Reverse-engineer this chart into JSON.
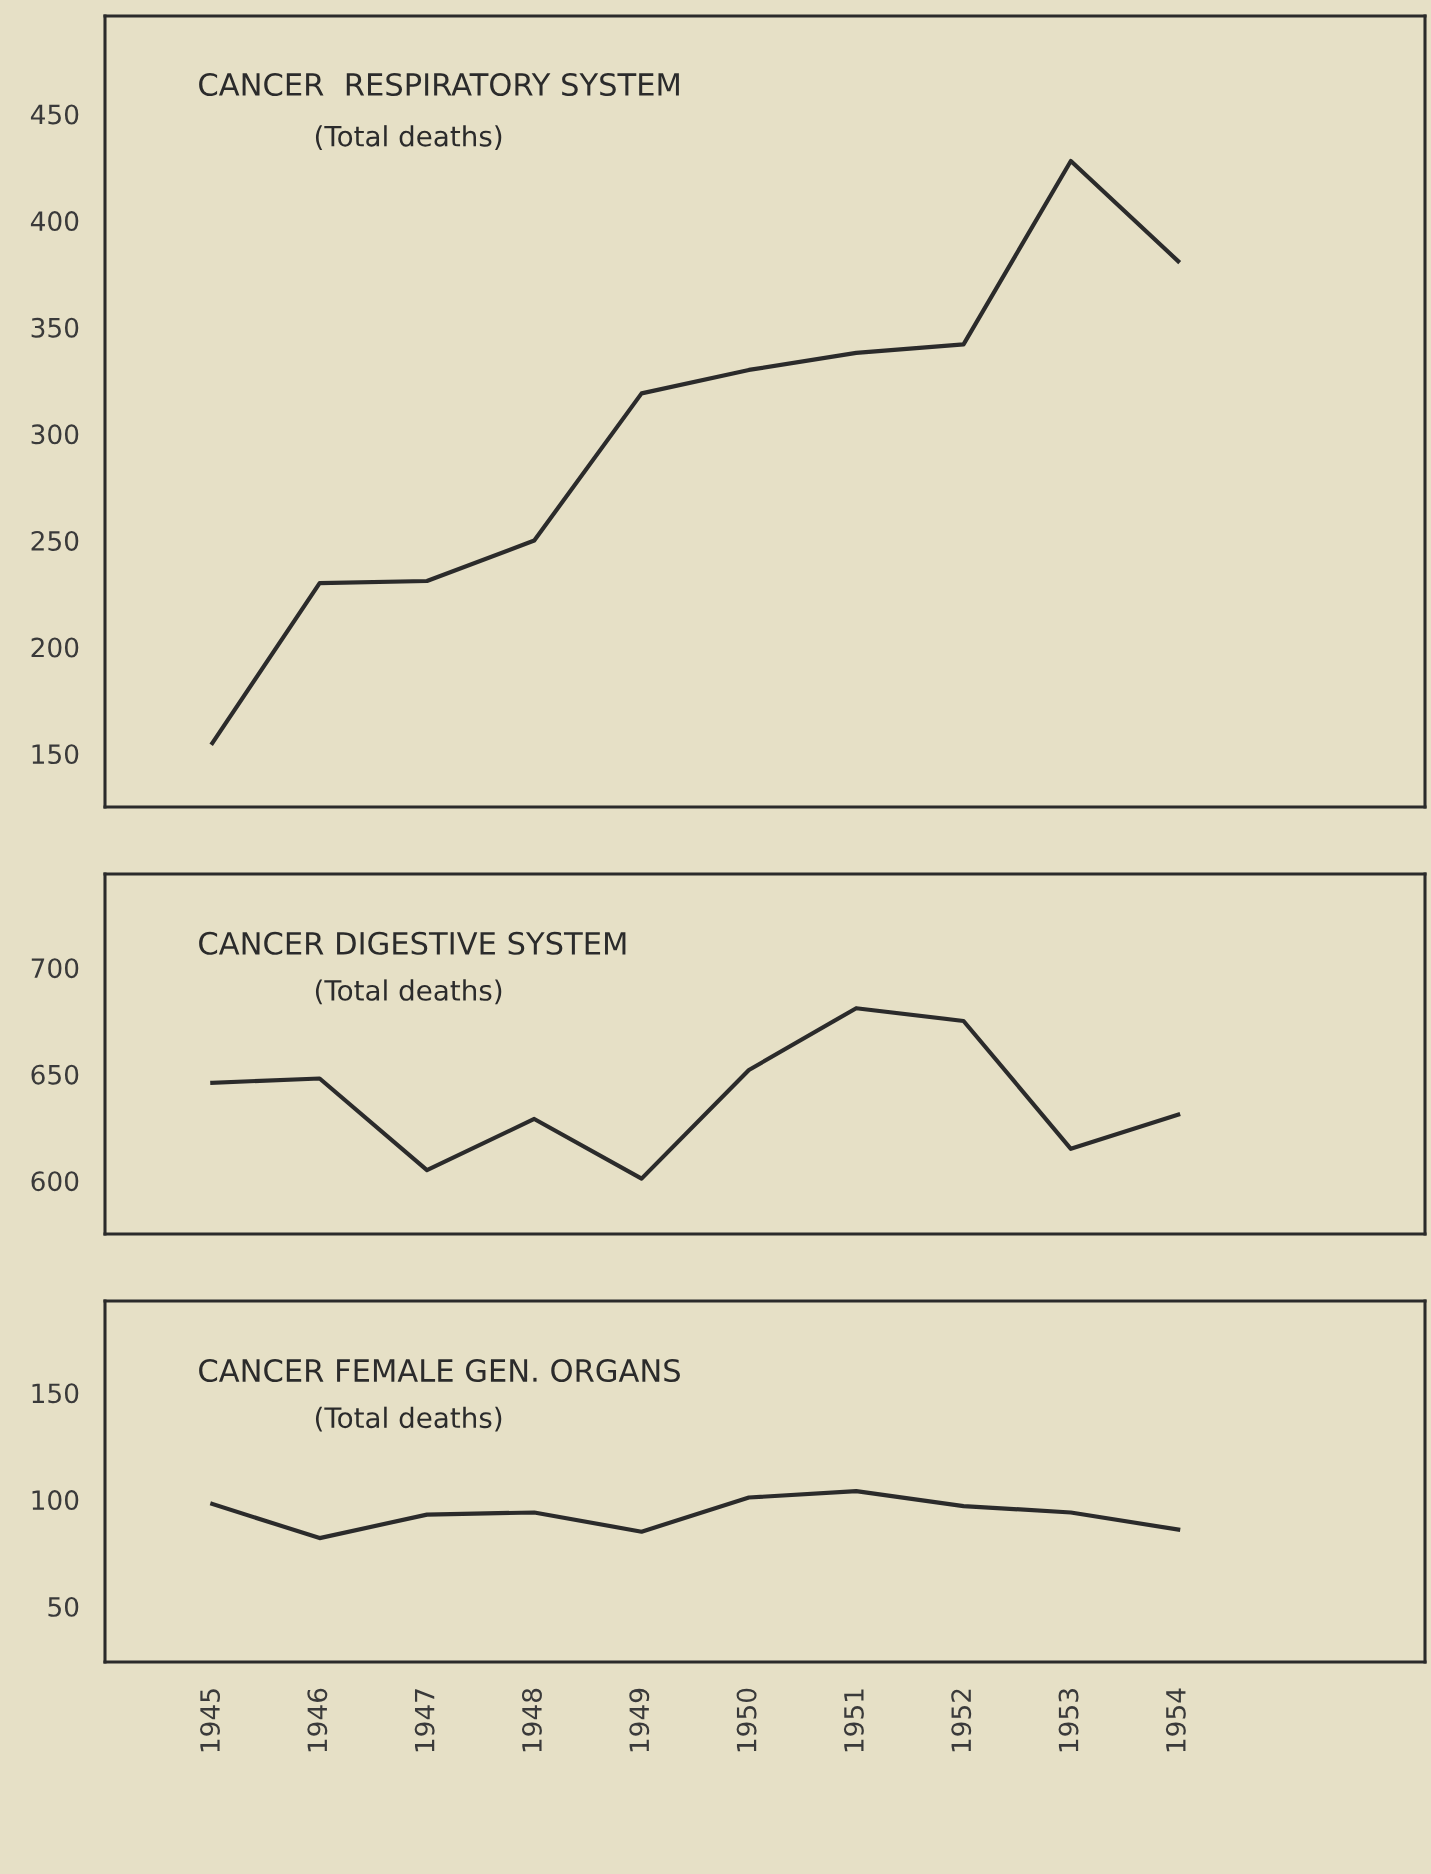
{
  "chart_data": [
    {
      "type": "line",
      "title": "CANCER  RESPIRATORY SYSTEM",
      "subtitle": "(Total deaths)",
      "x": [
        1945,
        1946,
        1947,
        1948,
        1949,
        1950,
        1951,
        1952,
        1953,
        1954
      ],
      "series": [
        {
          "color": "#2b2b2b",
          "values": [
            155,
            230,
            231,
            250,
            319,
            330,
            338,
            342,
            428,
            381
          ]
        }
      ],
      "xlim": [
        1944,
        1956.3
      ],
      "xticks": [
        1945,
        1946,
        1947,
        1948,
        1949,
        1950,
        1951,
        1952,
        1953,
        1954
      ],
      "ylim": [
        125,
        496
      ],
      "yticks": [
        150,
        200,
        250,
        300,
        350,
        400,
        450
      ],
      "tick_labels": "y",
      "grid": false,
      "marker": "none",
      "line_style": "solid"
    },
    {
      "type": "line",
      "title": "CANCER DIGESTIVE SYSTEM",
      "subtitle": "(Total deaths)",
      "x": [
        1945,
        1946,
        1947,
        1948,
        1949,
        1950,
        1951,
        1952,
        1953,
        1954
      ],
      "series": [
        {
          "color": "#2b2b2b",
          "values": [
            646,
            648,
            605,
            629,
            601,
            652,
            681,
            675,
            615,
            631
          ]
        }
      ],
      "xlim": [
        1944,
        1956.3
      ],
      "xticks": [
        1945,
        1946,
        1947,
        1948,
        1949,
        1950,
        1951,
        1952,
        1953,
        1954
      ],
      "ylim": [
        575,
        744
      ],
      "yticks": [
        600,
        650,
        700
      ],
      "tick_labels": "y",
      "grid": false,
      "marker": "none",
      "line_style": "solid"
    },
    {
      "type": "line",
      "title": "CANCER FEMALE GEN. ORGANS",
      "subtitle": "(Total deaths)",
      "x": [
        1945,
        1946,
        1947,
        1948,
        1949,
        1950,
        1951,
        1952,
        1953,
        1954
      ],
      "series": [
        {
          "color": "#2b2b2b",
          "values": [
            98,
            82,
            93,
            94,
            85,
            101,
            104,
            97,
            94,
            86
          ]
        }
      ],
      "xlim": [
        1944,
        1956.3
      ],
      "xticks": [
        1945,
        1946,
        1947,
        1948,
        1949,
        1950,
        1951,
        1952,
        1953,
        1954
      ],
      "ylim": [
        24,
        193
      ],
      "yticks": [
        50,
        100,
        150
      ],
      "grid": false,
      "marker": "none",
      "line_style": "solid"
    }
  ]
}
